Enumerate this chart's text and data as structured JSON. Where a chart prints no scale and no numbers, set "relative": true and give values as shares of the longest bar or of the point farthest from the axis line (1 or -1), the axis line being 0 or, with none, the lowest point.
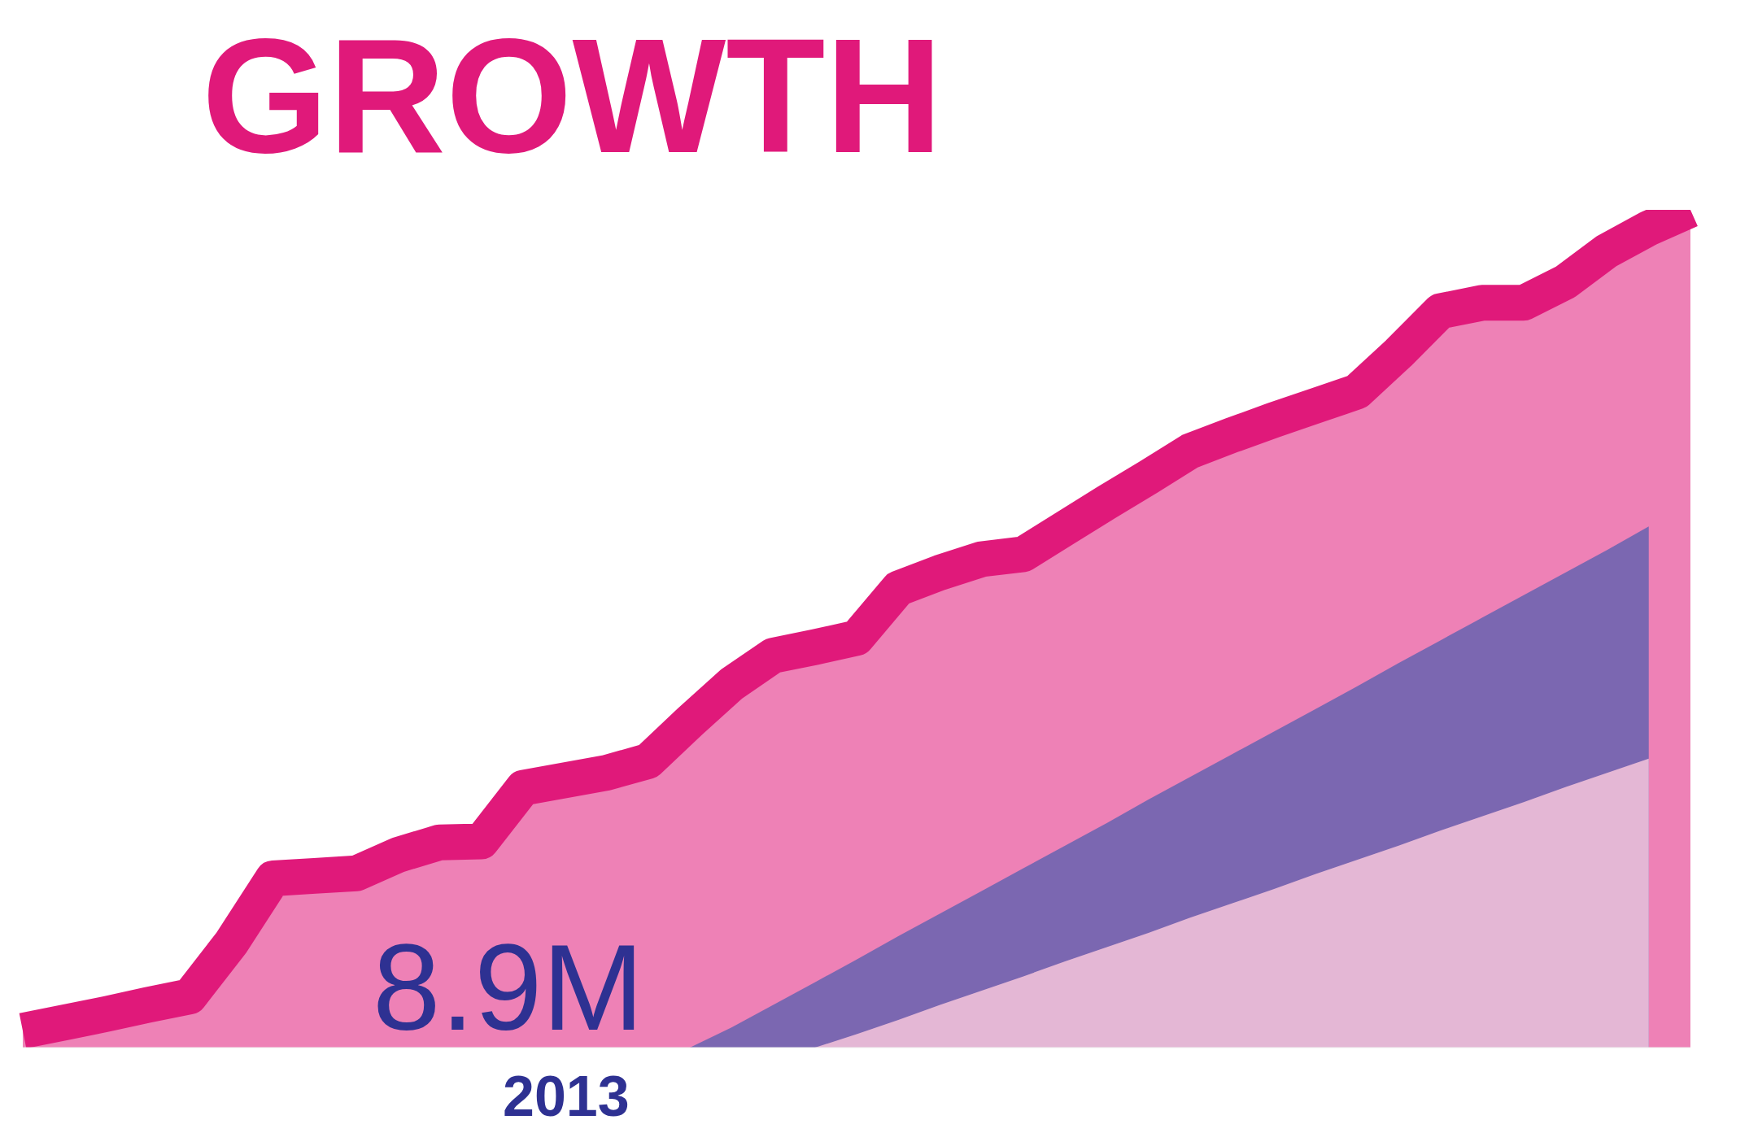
{
  "chart_data": {
    "type": "area",
    "title": "GROWTH",
    "relative": true,
    "annotations": [
      "8.9M",
      "2013"
    ],
    "grid": false,
    "legend": false,
    "categories": [
      null,
      null,
      null,
      null,
      null,
      null,
      null,
      null,
      null,
      null,
      null,
      null,
      null,
      null,
      null,
      null,
      null,
      null,
      null,
      null,
      null,
      null,
      null,
      null,
      null,
      null,
      null,
      null,
      null,
      null,
      null,
      null,
      null,
      null,
      null,
      null,
      null,
      null,
      null,
      null,
      null
    ],
    "series": [
      {
        "color": "#e0197a",
        "values": [
          0.02,
          0.03,
          0.04,
          0.051,
          0.061,
          0.125,
          0.202,
          0.205,
          0.208,
          0.23,
          0.245,
          0.246,
          0.31,
          0.319,
          0.328,
          0.342,
          0.389,
          0.434,
          0.468,
          0.478,
          0.489,
          0.548,
          0.567,
          0.583,
          0.589,
          0.62,
          0.651,
          0.681,
          0.712,
          0.731,
          0.749,
          0.766,
          0.783,
          0.829,
          0.879,
          0.889,
          0.889,
          0.914,
          0.951,
          0.978,
          1
        ]
      },
      {
        "color": "#6663b0",
        "values": [
          null,
          null,
          null,
          null,
          null,
          null,
          null,
          null,
          null,
          null,
          null,
          null,
          null,
          null,
          null,
          null,
          0,
          0.024,
          0.051,
          0.078,
          0.105,
          0.133,
          0.16,
          0.187,
          0.214,
          0.241,
          0.268,
          0.296,
          0.323,
          0.35,
          0.377,
          0.404,
          0.431,
          0.459,
          0.486,
          0.513,
          0.54,
          0.567,
          0.594,
          0.622,
          null
        ]
      },
      {
        "color": "#f7c6dc",
        "values": [
          null,
          null,
          null,
          null,
          null,
          null,
          null,
          null,
          null,
          null,
          null,
          null,
          null,
          null,
          null,
          null,
          null,
          null,
          null,
          0,
          0.016,
          0.033,
          0.051,
          0.068,
          0.085,
          0.103,
          0.12,
          0.137,
          0.155,
          0.172,
          0.189,
          0.207,
          0.224,
          0.241,
          0.259,
          0.276,
          0.293,
          0.311,
          0.328,
          0.345,
          null
        ]
      }
    ]
  }
}
